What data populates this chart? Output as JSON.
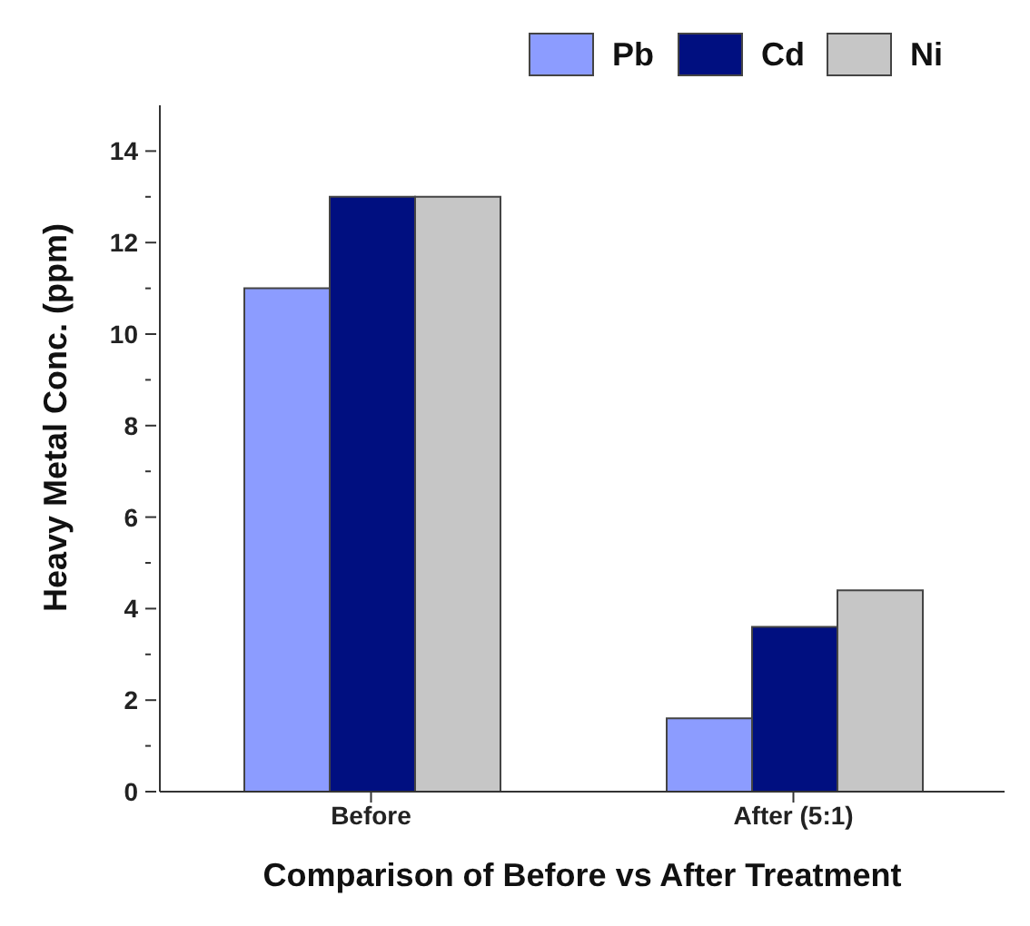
{
  "chart_data": {
    "type": "bar",
    "xlabel": "Comparison of Before vs After Treatment",
    "ylabel": "Heavy Metal Conc. (ppm)",
    "categories": [
      "Before",
      "After (5:1)"
    ],
    "series": [
      {
        "name": "Pb",
        "color": "#8c9cff",
        "values": [
          11,
          1.6
        ]
      },
      {
        "name": "Cd",
        "color": "#000f80",
        "values": [
          13,
          3.6
        ]
      },
      {
        "name": "Ni",
        "color": "#c6c6c6",
        "values": [
          13,
          4.4
        ]
      }
    ],
    "ylim": [
      0,
      15
    ],
    "yticks": [
      0,
      {
        "value": 1,
        "label": null
      },
      2,
      {
        "value": 3,
        "label": null
      },
      4,
      {
        "value": 5,
        "label": null
      },
      6,
      {
        "value": 7,
        "label": null
      },
      8,
      {
        "value": 9,
        "label": null
      },
      10,
      {
        "value": 11,
        "label": null
      },
      12,
      {
        "value": 13,
        "label": null
      },
      14
    ],
    "grid": false,
    "legend": "top right"
  }
}
